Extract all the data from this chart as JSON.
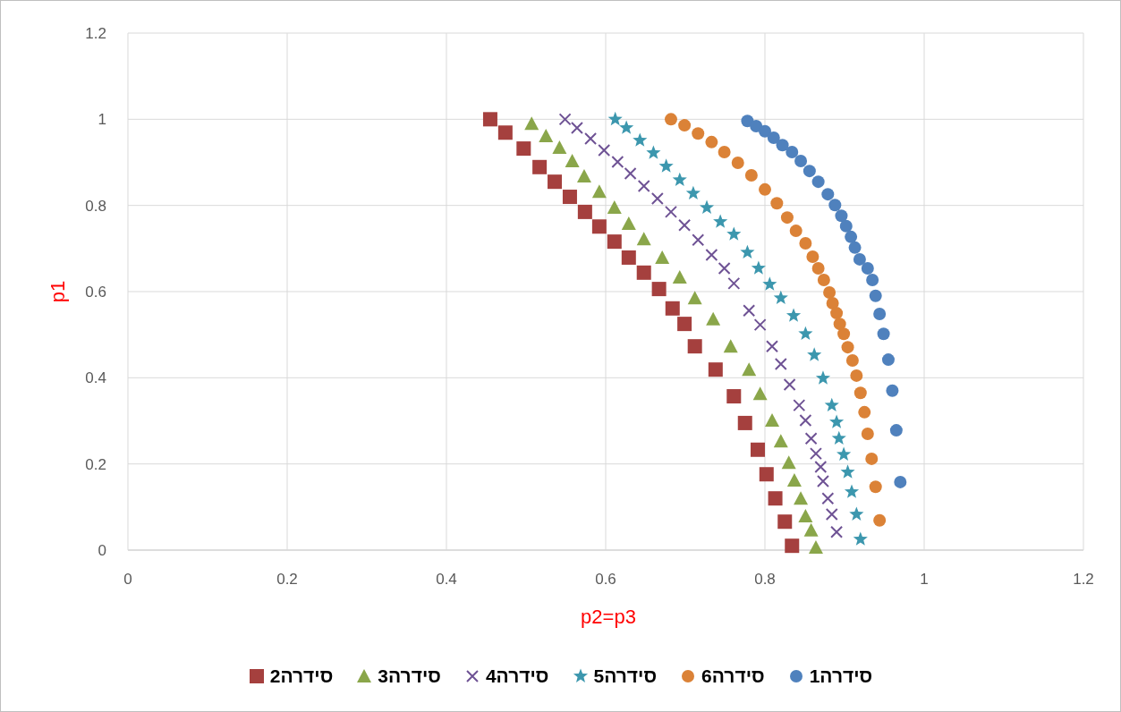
{
  "chart_data": {
    "type": "scatter",
    "xlabel": "p2=p3",
    "ylabel": "p1",
    "xlim": [
      0,
      1.2
    ],
    "ylim": [
      0,
      1.2
    ],
    "xticks": [
      0,
      0.2,
      0.4,
      0.6,
      0.8,
      1,
      1.2
    ],
    "yticks": [
      0,
      0.2,
      0.4,
      0.6,
      0.8,
      1,
      1.2
    ],
    "grid": true,
    "legend": "bottom",
    "series": [
      {
        "name": "סידרה2",
        "color": "#a5403e",
        "marker": "square",
        "x": [
          0.455,
          0.474,
          0.497,
          0.517,
          0.536,
          0.555,
          0.574,
          0.592,
          0.611,
          0.629,
          0.648,
          0.667,
          0.684,
          0.699,
          0.712,
          0.738,
          0.761,
          0.775,
          0.791,
          0.802,
          0.813,
          0.825,
          0.834
        ],
        "values": [
          1.0,
          0.969,
          0.932,
          0.889,
          0.855,
          0.82,
          0.785,
          0.751,
          0.716,
          0.679,
          0.644,
          0.606,
          0.561,
          0.525,
          0.473,
          0.419,
          0.357,
          0.295,
          0.233,
          0.176,
          0.12,
          0.066,
          0.01
        ]
      },
      {
        "name": "סידרה3",
        "color": "#8aa64a",
        "marker": "triangle",
        "x": [
          0.507,
          0.525,
          0.542,
          0.558,
          0.573,
          0.592,
          0.611,
          0.629,
          0.648,
          0.671,
          0.693,
          0.712,
          0.735,
          0.757,
          0.78,
          0.794,
          0.809,
          0.82,
          0.83,
          0.837,
          0.845,
          0.851,
          0.858,
          0.864
        ],
        "values": [
          0.99,
          0.961,
          0.934,
          0.903,
          0.868,
          0.832,
          0.795,
          0.758,
          0.722,
          0.679,
          0.633,
          0.585,
          0.536,
          0.473,
          0.419,
          0.363,
          0.301,
          0.253,
          0.203,
          0.162,
          0.12,
          0.079,
          0.046,
          0.006
        ]
      },
      {
        "name": "סידרה4",
        "color": "#6e5294",
        "marker": "cross",
        "x": [
          0.549,
          0.564,
          0.581,
          0.598,
          0.615,
          0.631,
          0.648,
          0.665,
          0.682,
          0.699,
          0.716,
          0.733,
          0.749,
          0.761,
          0.78,
          0.794,
          0.809,
          0.82,
          0.831,
          0.843,
          0.851,
          0.858,
          0.864,
          0.87,
          0.873,
          0.879,
          0.884,
          0.89
        ],
        "values": [
          1.0,
          0.98,
          0.955,
          0.928,
          0.901,
          0.874,
          0.845,
          0.816,
          0.785,
          0.754,
          0.72,
          0.685,
          0.654,
          0.619,
          0.556,
          0.523,
          0.473,
          0.432,
          0.384,
          0.336,
          0.301,
          0.259,
          0.224,
          0.193,
          0.16,
          0.12,
          0.083,
          0.042
        ]
      },
      {
        "name": "סידרה5",
        "color": "#3c97ae",
        "marker": "star",
        "x": [
          0.612,
          0.626,
          0.643,
          0.66,
          0.676,
          0.693,
          0.71,
          0.727,
          0.744,
          0.761,
          0.778,
          0.792,
          0.806,
          0.82,
          0.836,
          0.851,
          0.862,
          0.873,
          0.884,
          0.89,
          0.893,
          0.899,
          0.904,
          0.909,
          0.915,
          0.92
        ],
        "values": [
          1.0,
          0.98,
          0.951,
          0.922,
          0.891,
          0.859,
          0.828,
          0.795,
          0.762,
          0.733,
          0.691,
          0.654,
          0.617,
          0.585,
          0.544,
          0.502,
          0.453,
          0.399,
          0.336,
          0.297,
          0.259,
          0.222,
          0.181,
          0.135,
          0.083,
          0.025
        ]
      },
      {
        "name": "סידרה6",
        "color": "#db8237",
        "marker": "circle",
        "x": [
          0.682,
          0.699,
          0.716,
          0.733,
          0.749,
          0.766,
          0.783,
          0.8,
          0.815,
          0.828,
          0.839,
          0.851,
          0.86,
          0.867,
          0.874,
          0.881,
          0.885,
          0.89,
          0.894,
          0.899,
          0.904,
          0.91,
          0.915,
          0.92,
          0.925,
          0.929,
          0.934,
          0.939,
          0.944
        ],
        "values": [
          1.0,
          0.986,
          0.967,
          0.947,
          0.924,
          0.899,
          0.87,
          0.837,
          0.805,
          0.772,
          0.741,
          0.712,
          0.681,
          0.654,
          0.627,
          0.598,
          0.573,
          0.55,
          0.525,
          0.502,
          0.471,
          0.44,
          0.405,
          0.365,
          0.32,
          0.27,
          0.212,
          0.147,
          0.069
        ]
      },
      {
        "name": "סידרה1",
        "color": "#4f81bd",
        "marker": "circle",
        "x": [
          0.778,
          0.789,
          0.8,
          0.811,
          0.822,
          0.834,
          0.845,
          0.856,
          0.867,
          0.879,
          0.888,
          0.896,
          0.902,
          0.908,
          0.913,
          0.919,
          0.929,
          0.935,
          0.939,
          0.944,
          0.949,
          0.955,
          0.96,
          0.965,
          0.97
        ],
        "values": [
          0.996,
          0.984,
          0.972,
          0.957,
          0.94,
          0.924,
          0.903,
          0.88,
          0.855,
          0.826,
          0.801,
          0.776,
          0.752,
          0.727,
          0.702,
          0.675,
          0.654,
          0.627,
          0.59,
          0.548,
          0.502,
          0.442,
          0.37,
          0.278,
          0.158
        ]
      }
    ]
  }
}
